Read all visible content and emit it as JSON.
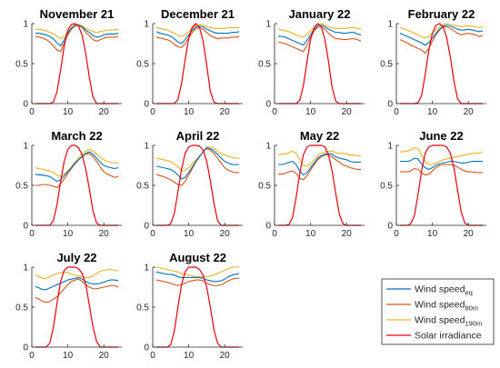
{
  "chart_data": {
    "type": "line",
    "x_hours": [
      1,
      2,
      3,
      4,
      5,
      6,
      7,
      8,
      9,
      10,
      11,
      12,
      13,
      14,
      15,
      16,
      17,
      18,
      19,
      20,
      21,
      22,
      23,
      24
    ],
    "xlim": [
      0,
      25
    ],
    "ylim": [
      0,
      1
    ],
    "xticks": [
      "0",
      "10",
      "20"
    ],
    "yticks": [
      "0",
      "0.5",
      "1"
    ],
    "legend": {
      "placement": "bottom-right",
      "entries": [
        {
          "key": "eq",
          "base": "Wind speed",
          "sub": "eq",
          "color": "#0072BD"
        },
        {
          "key": "m80",
          "base": "Wind speed",
          "sub": "80m",
          "color": "#D95319"
        },
        {
          "key": "m190",
          "base": "Wind speed",
          "sub": "190m",
          "color": "#EDB120"
        },
        {
          "key": "solar",
          "base": "Solar irradiance",
          "sub": "",
          "color": "#E8000B"
        }
      ]
    },
    "panels": [
      {
        "title": "November 21",
        "series": {
          "eq": [
            0.88,
            0.88,
            0.87,
            0.86,
            0.84,
            0.81,
            0.76,
            0.72,
            0.8,
            0.88,
            0.94,
            0.98,
            0.98,
            0.96,
            0.92,
            0.89,
            0.85,
            0.83,
            0.84,
            0.86,
            0.87,
            0.87,
            0.87,
            0.88
          ],
          "m80": [
            0.84,
            0.83,
            0.82,
            0.8,
            0.77,
            0.72,
            0.67,
            0.65,
            0.76,
            0.86,
            0.93,
            0.97,
            0.98,
            0.95,
            0.89,
            0.85,
            0.8,
            0.78,
            0.8,
            0.82,
            0.83,
            0.83,
            0.83,
            0.84
          ],
          "m190": [
            0.93,
            0.93,
            0.92,
            0.91,
            0.89,
            0.87,
            0.84,
            0.81,
            0.84,
            0.9,
            0.95,
            0.99,
            0.99,
            0.97,
            0.94,
            0.92,
            0.9,
            0.89,
            0.9,
            0.91,
            0.92,
            0.92,
            0.92,
            0.93
          ],
          "solar": [
            0,
            0,
            0,
            0,
            0,
            0.02,
            0.15,
            0.42,
            0.72,
            0.92,
            0.99,
            1.0,
            0.97,
            0.85,
            0.62,
            0.32,
            0.08,
            0,
            0,
            0,
            0,
            0,
            0,
            0
          ]
        }
      },
      {
        "title": "December 21",
        "series": {
          "eq": [
            0.9,
            0.88,
            0.87,
            0.86,
            0.84,
            0.81,
            0.77,
            0.75,
            0.8,
            0.86,
            0.92,
            0.96,
            0.97,
            0.96,
            0.93,
            0.91,
            0.89,
            0.88,
            0.88,
            0.88,
            0.88,
            0.89,
            0.89,
            0.9
          ],
          "m80": [
            0.83,
            0.82,
            0.81,
            0.8,
            0.78,
            0.74,
            0.71,
            0.7,
            0.75,
            0.82,
            0.89,
            0.94,
            0.95,
            0.93,
            0.89,
            0.85,
            0.83,
            0.81,
            0.82,
            0.82,
            0.82,
            0.83,
            0.83,
            0.84
          ],
          "m190": [
            0.95,
            0.94,
            0.93,
            0.92,
            0.9,
            0.88,
            0.85,
            0.84,
            0.86,
            0.9,
            0.94,
            0.98,
            0.99,
            0.98,
            0.96,
            0.95,
            0.94,
            0.94,
            0.94,
            0.94,
            0.95,
            0.95,
            0.95,
            0.95
          ],
          "solar": [
            0,
            0,
            0,
            0,
            0,
            0,
            0.05,
            0.25,
            0.55,
            0.82,
            0.96,
            1.0,
            0.95,
            0.78,
            0.48,
            0.15,
            0.02,
            0,
            0,
            0,
            0,
            0,
            0,
            0
          ]
        }
      },
      {
        "title": "January 22",
        "series": {
          "eq": [
            0.84,
            0.84,
            0.83,
            0.81,
            0.79,
            0.77,
            0.75,
            0.73,
            0.79,
            0.86,
            0.93,
            0.97,
            0.98,
            0.96,
            0.93,
            0.91,
            0.89,
            0.89,
            0.88,
            0.88,
            0.89,
            0.89,
            0.87,
            0.86
          ],
          "m80": [
            0.77,
            0.76,
            0.75,
            0.73,
            0.71,
            0.69,
            0.67,
            0.65,
            0.73,
            0.83,
            0.91,
            0.95,
            0.96,
            0.93,
            0.88,
            0.84,
            0.81,
            0.81,
            0.8,
            0.8,
            0.81,
            0.81,
            0.8,
            0.78
          ],
          "m190": [
            0.93,
            0.92,
            0.91,
            0.9,
            0.88,
            0.86,
            0.84,
            0.83,
            0.86,
            0.91,
            0.95,
            0.99,
            1.0,
            0.98,
            0.96,
            0.95,
            0.94,
            0.94,
            0.94,
            0.94,
            0.95,
            0.95,
            0.94,
            0.93
          ],
          "solar": [
            0,
            0,
            0,
            0,
            0,
            0,
            0.04,
            0.22,
            0.52,
            0.8,
            0.95,
            1.0,
            0.96,
            0.8,
            0.52,
            0.2,
            0.03,
            0,
            0,
            0,
            0,
            0,
            0,
            0
          ]
        }
      },
      {
        "title": "February 22",
        "series": {
          "eq": [
            0.88,
            0.86,
            0.84,
            0.82,
            0.8,
            0.78,
            0.76,
            0.73,
            0.76,
            0.82,
            0.88,
            0.93,
            0.97,
            0.98,
            0.97,
            0.95,
            0.93,
            0.92,
            0.92,
            0.93,
            0.92,
            0.91,
            0.9,
            0.91
          ],
          "m80": [
            0.8,
            0.78,
            0.76,
            0.73,
            0.71,
            0.69,
            0.67,
            0.63,
            0.69,
            0.78,
            0.86,
            0.92,
            0.96,
            0.96,
            0.94,
            0.91,
            0.88,
            0.86,
            0.87,
            0.88,
            0.87,
            0.86,
            0.84,
            0.85
          ],
          "m190": [
            0.95,
            0.94,
            0.92,
            0.9,
            0.88,
            0.86,
            0.84,
            0.82,
            0.84,
            0.88,
            0.92,
            0.96,
            0.99,
            1.0,
            0.99,
            0.98,
            0.97,
            0.96,
            0.97,
            0.97,
            0.97,
            0.96,
            0.95,
            0.96
          ],
          "solar": [
            0,
            0,
            0,
            0,
            0,
            0.01,
            0.1,
            0.36,
            0.66,
            0.88,
            0.98,
            1.0,
            0.96,
            0.82,
            0.58,
            0.28,
            0.06,
            0,
            0,
            0,
            0,
            0,
            0,
            0
          ]
        }
      },
      {
        "title": "March 22",
        "series": {
          "eq": [
            0.64,
            0.63,
            0.63,
            0.62,
            0.61,
            0.58,
            0.55,
            0.57,
            0.62,
            0.67,
            0.72,
            0.78,
            0.82,
            0.86,
            0.9,
            0.92,
            0.89,
            0.84,
            0.79,
            0.75,
            0.73,
            0.72,
            0.71,
            0.72
          ],
          "m80": [
            0.5,
            0.5,
            0.51,
            0.51,
            0.5,
            0.49,
            0.47,
            0.52,
            0.58,
            0.65,
            0.71,
            0.77,
            0.82,
            0.86,
            0.89,
            0.9,
            0.86,
            0.8,
            0.73,
            0.67,
            0.64,
            0.62,
            0.6,
            0.61
          ],
          "m190": [
            0.72,
            0.71,
            0.7,
            0.69,
            0.68,
            0.66,
            0.63,
            0.61,
            0.64,
            0.68,
            0.73,
            0.79,
            0.84,
            0.89,
            0.93,
            0.95,
            0.93,
            0.89,
            0.85,
            0.82,
            0.8,
            0.79,
            0.78,
            0.78
          ],
          "solar": [
            0,
            0,
            0,
            0,
            0,
            0.06,
            0.26,
            0.55,
            0.8,
            0.95,
            1.0,
            1.0,
            0.97,
            0.88,
            0.7,
            0.45,
            0.18,
            0.03,
            0,
            0,
            0,
            0,
            0,
            0
          ]
        }
      },
      {
        "title": "April 22",
        "series": {
          "eq": [
            0.74,
            0.73,
            0.72,
            0.71,
            0.7,
            0.67,
            0.63,
            0.58,
            0.6,
            0.66,
            0.73,
            0.8,
            0.86,
            0.92,
            0.97,
            0.96,
            0.93,
            0.89,
            0.84,
            0.8,
            0.78,
            0.76,
            0.76,
            0.76
          ],
          "m80": [
            0.64,
            0.62,
            0.61,
            0.59,
            0.57,
            0.54,
            0.51,
            0.5,
            0.55,
            0.63,
            0.71,
            0.79,
            0.86,
            0.92,
            0.96,
            0.94,
            0.9,
            0.84,
            0.78,
            0.72,
            0.69,
            0.67,
            0.66,
            0.66
          ],
          "m190": [
            0.84,
            0.83,
            0.82,
            0.81,
            0.8,
            0.77,
            0.73,
            0.69,
            0.69,
            0.72,
            0.77,
            0.82,
            0.87,
            0.92,
            0.98,
            0.98,
            0.96,
            0.93,
            0.9,
            0.88,
            0.86,
            0.85,
            0.84,
            0.84
          ],
          "solar": [
            0,
            0,
            0,
            0,
            0.02,
            0.15,
            0.42,
            0.7,
            0.9,
            0.98,
            1.0,
            1.0,
            0.99,
            0.94,
            0.8,
            0.56,
            0.28,
            0.06,
            0,
            0,
            0,
            0,
            0,
            0
          ]
        }
      },
      {
        "title": "May 22",
        "series": {
          "eq": [
            0.76,
            0.76,
            0.77,
            0.79,
            0.8,
            0.76,
            0.68,
            0.63,
            0.66,
            0.72,
            0.78,
            0.84,
            0.87,
            0.89,
            0.9,
            0.89,
            0.86,
            0.84,
            0.83,
            0.82,
            0.8,
            0.79,
            0.79,
            0.79
          ],
          "m80": [
            0.64,
            0.64,
            0.65,
            0.67,
            0.68,
            0.65,
            0.59,
            0.57,
            0.62,
            0.69,
            0.76,
            0.82,
            0.86,
            0.88,
            0.88,
            0.86,
            0.82,
            0.79,
            0.76,
            0.74,
            0.72,
            0.71,
            0.7,
            0.7
          ],
          "m190": [
            0.88,
            0.89,
            0.89,
            0.91,
            0.93,
            0.9,
            0.82,
            0.75,
            0.74,
            0.77,
            0.82,
            0.87,
            0.9,
            0.92,
            0.93,
            0.93,
            0.91,
            0.9,
            0.9,
            0.89,
            0.88,
            0.88,
            0.87,
            0.87
          ],
          "solar": [
            0,
            0,
            0,
            0.01,
            0.1,
            0.35,
            0.65,
            0.88,
            0.98,
            1.0,
            1.0,
            1.0,
            1.0,
            0.98,
            0.88,
            0.68,
            0.4,
            0.14,
            0.02,
            0,
            0,
            0,
            0,
            0
          ]
        }
      },
      {
        "title": "June 22",
        "series": {
          "eq": [
            0.8,
            0.8,
            0.8,
            0.81,
            0.84,
            0.83,
            0.77,
            0.72,
            0.7,
            0.72,
            0.75,
            0.77,
            0.78,
            0.79,
            0.8,
            0.8,
            0.79,
            0.78,
            0.78,
            0.79,
            0.8,
            0.8,
            0.8,
            0.8
          ],
          "m80": [
            0.67,
            0.67,
            0.67,
            0.68,
            0.71,
            0.7,
            0.66,
            0.63,
            0.64,
            0.68,
            0.72,
            0.75,
            0.76,
            0.76,
            0.76,
            0.75,
            0.73,
            0.7,
            0.68,
            0.67,
            0.67,
            0.66,
            0.66,
            0.66
          ],
          "m190": [
            0.92,
            0.92,
            0.93,
            0.94,
            0.97,
            0.96,
            0.88,
            0.8,
            0.76,
            0.76,
            0.78,
            0.8,
            0.82,
            0.83,
            0.84,
            0.85,
            0.86,
            0.87,
            0.88,
            0.89,
            0.9,
            0.9,
            0.91,
            0.91
          ],
          "solar": [
            0,
            0,
            0,
            0.02,
            0.12,
            0.38,
            0.68,
            0.9,
            0.98,
            1.0,
            1.0,
            1.0,
            1.0,
            0.98,
            0.9,
            0.72,
            0.44,
            0.17,
            0.03,
            0,
            0,
            0,
            0,
            0
          ]
        }
      },
      {
        "title": "July 22",
        "series": {
          "eq": [
            0.76,
            0.74,
            0.72,
            0.72,
            0.74,
            0.76,
            0.78,
            0.8,
            0.82,
            0.84,
            0.85,
            0.86,
            0.87,
            0.85,
            0.82,
            0.8,
            0.79,
            0.79,
            0.8,
            0.81,
            0.83,
            0.84,
            0.84,
            0.83
          ],
          "m80": [
            0.62,
            0.6,
            0.57,
            0.56,
            0.57,
            0.6,
            0.63,
            0.68,
            0.73,
            0.78,
            0.82,
            0.84,
            0.85,
            0.82,
            0.78,
            0.75,
            0.73,
            0.73,
            0.74,
            0.75,
            0.76,
            0.77,
            0.77,
            0.75
          ],
          "m190": [
            0.9,
            0.88,
            0.86,
            0.86,
            0.88,
            0.9,
            0.92,
            0.93,
            0.94,
            0.93,
            0.91,
            0.9,
            0.89,
            0.88,
            0.87,
            0.87,
            0.89,
            0.92,
            0.95,
            0.96,
            0.97,
            0.97,
            0.96,
            0.95
          ],
          "solar": [
            0,
            0,
            0,
            0,
            0.05,
            0.25,
            0.55,
            0.82,
            0.96,
            1.0,
            1.0,
            1.0,
            0.98,
            0.92,
            0.78,
            0.52,
            0.25,
            0.07,
            0,
            0,
            0,
            0,
            0,
            0
          ]
        }
      },
      {
        "title": "August 22",
        "series": {
          "eq": [
            0.94,
            0.93,
            0.92,
            0.91,
            0.91,
            0.9,
            0.88,
            0.87,
            0.87,
            0.87,
            0.87,
            0.87,
            0.87,
            0.86,
            0.84,
            0.83,
            0.82,
            0.82,
            0.83,
            0.85,
            0.88,
            0.9,
            0.91,
            0.92
          ],
          "m80": [
            0.84,
            0.83,
            0.82,
            0.81,
            0.8,
            0.78,
            0.77,
            0.78,
            0.8,
            0.82,
            0.83,
            0.84,
            0.84,
            0.83,
            0.8,
            0.78,
            0.77,
            0.77,
            0.78,
            0.8,
            0.83,
            0.85,
            0.86,
            0.86
          ],
          "m190": [
            1.0,
            0.99,
            0.98,
            0.97,
            0.96,
            0.95,
            0.94,
            0.92,
            0.91,
            0.9,
            0.89,
            0.88,
            0.88,
            0.88,
            0.88,
            0.89,
            0.9,
            0.92,
            0.94,
            0.96,
            0.98,
            1.0,
            1.0,
            1.0
          ],
          "solar": [
            0,
            0,
            0,
            0,
            0.03,
            0.2,
            0.5,
            0.78,
            0.94,
            1.0,
            1.0,
            1.0,
            0.97,
            0.9,
            0.75,
            0.5,
            0.22,
            0.05,
            0,
            0,
            0,
            0,
            0,
            0
          ]
        }
      }
    ]
  }
}
